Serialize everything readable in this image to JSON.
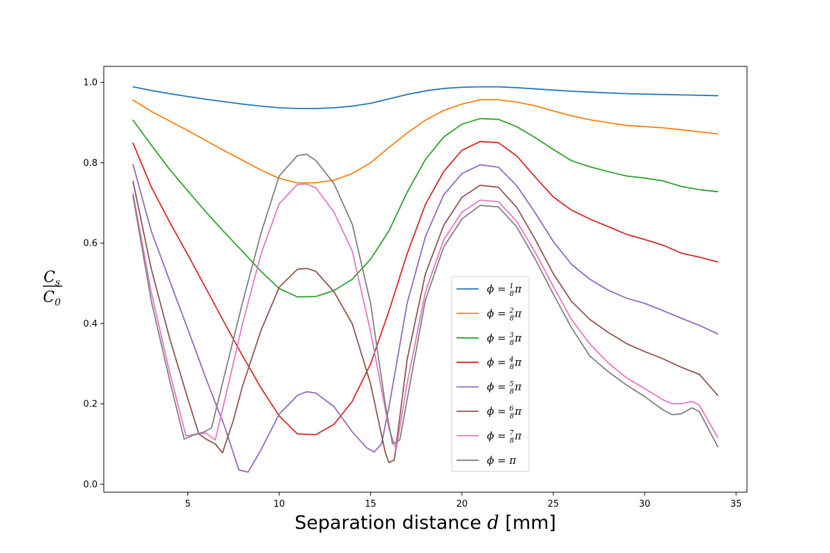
{
  "chart_data": {
    "type": "line",
    "title": "",
    "xlabel": "Separation distance d [mm]",
    "ylabel": "C_s / C_0",
    "xlim": [
      0.4,
      35.6
    ],
    "ylim": [
      -0.02,
      1.04
    ],
    "xticks": [
      5,
      10,
      15,
      20,
      25,
      30,
      35
    ],
    "yticks": [
      0.0,
      0.2,
      0.4,
      0.6,
      0.8,
      1.0
    ],
    "xtick_labels": [
      "5",
      "10",
      "15",
      "20",
      "25",
      "30",
      "35"
    ],
    "ytick_labels": [
      "0.0",
      "0.2",
      "0.4",
      "0.6",
      "0.8",
      "1.0"
    ],
    "grid": false,
    "legend_position": "lower-center",
    "series": [
      {
        "name": "ϕ = 1/8 π",
        "color": "#1f77b4",
        "points": [
          [
            2,
            0.989
          ],
          [
            3,
            0.98
          ],
          [
            4,
            0.972
          ],
          [
            5,
            0.965
          ],
          [
            6,
            0.958
          ],
          [
            7,
            0.952
          ],
          [
            8,
            0.946
          ],
          [
            9,
            0.941
          ],
          [
            10,
            0.937
          ],
          [
            11,
            0.935
          ],
          [
            12,
            0.935
          ],
          [
            13,
            0.937
          ],
          [
            14,
            0.941
          ],
          [
            15,
            0.948
          ],
          [
            16,
            0.959
          ],
          [
            17,
            0.97
          ],
          [
            18,
            0.979
          ],
          [
            19,
            0.985
          ],
          [
            20,
            0.988
          ],
          [
            21,
            0.989
          ],
          [
            22,
            0.989
          ],
          [
            23,
            0.987
          ],
          [
            24,
            0.984
          ],
          [
            25,
            0.981
          ],
          [
            26,
            0.978
          ],
          [
            27,
            0.976
          ],
          [
            28,
            0.974
          ],
          [
            29,
            0.972
          ],
          [
            30,
            0.971
          ],
          [
            31,
            0.97
          ],
          [
            32,
            0.969
          ],
          [
            33,
            0.968
          ],
          [
            34,
            0.967
          ]
        ]
      },
      {
        "name": "ϕ = 2/8 π",
        "color": "#ff7f0e",
        "points": [
          [
            2,
            0.956
          ],
          [
            3,
            0.928
          ],
          [
            4,
            0.904
          ],
          [
            5,
            0.88
          ],
          [
            6,
            0.855
          ],
          [
            7,
            0.83
          ],
          [
            8,
            0.806
          ],
          [
            9,
            0.782
          ],
          [
            10,
            0.761
          ],
          [
            11,
            0.75
          ],
          [
            12,
            0.75
          ],
          [
            13,
            0.757
          ],
          [
            14,
            0.773
          ],
          [
            15,
            0.8
          ],
          [
            16,
            0.838
          ],
          [
            17,
            0.874
          ],
          [
            18,
            0.906
          ],
          [
            19,
            0.93
          ],
          [
            20,
            0.946
          ],
          [
            21,
            0.957
          ],
          [
            22,
            0.957
          ],
          [
            23,
            0.951
          ],
          [
            24,
            0.942
          ],
          [
            25,
            0.929
          ],
          [
            26,
            0.917
          ],
          [
            27,
            0.907
          ],
          [
            28,
            0.9
          ],
          [
            29,
            0.893
          ],
          [
            30,
            0.89
          ],
          [
            31,
            0.887
          ],
          [
            32,
            0.882
          ],
          [
            33,
            0.877
          ],
          [
            34,
            0.872
          ]
        ]
      },
      {
        "name": "ϕ = 3/8 π",
        "color": "#2ca02c",
        "points": [
          [
            2,
            0.906
          ],
          [
            3,
            0.844
          ],
          [
            4,
            0.784
          ],
          [
            5,
            0.73
          ],
          [
            6,
            0.677
          ],
          [
            7,
            0.627
          ],
          [
            8,
            0.579
          ],
          [
            9,
            0.53
          ],
          [
            10,
            0.487
          ],
          [
            11,
            0.466
          ],
          [
            12,
            0.467
          ],
          [
            13,
            0.482
          ],
          [
            14,
            0.51
          ],
          [
            15,
            0.56
          ],
          [
            16,
            0.63
          ],
          [
            17,
            0.726
          ],
          [
            18,
            0.808
          ],
          [
            19,
            0.864
          ],
          [
            20,
            0.896
          ],
          [
            21,
            0.91
          ],
          [
            22,
            0.908
          ],
          [
            23,
            0.89
          ],
          [
            24,
            0.863
          ],
          [
            25,
            0.833
          ],
          [
            26,
            0.805
          ],
          [
            27,
            0.79
          ],
          [
            28,
            0.778
          ],
          [
            29,
            0.767
          ],
          [
            30,
            0.762
          ],
          [
            31,
            0.755
          ],
          [
            32,
            0.741
          ],
          [
            33,
            0.733
          ],
          [
            34,
            0.728
          ]
        ]
      },
      {
        "name": "ϕ = 4/8 π",
        "color": "#d62728",
        "points": [
          [
            2,
            0.849
          ],
          [
            3,
            0.74
          ],
          [
            4,
            0.653
          ],
          [
            5,
            0.571
          ],
          [
            6,
            0.487
          ],
          [
            7,
            0.402
          ],
          [
            8,
            0.319
          ],
          [
            9,
            0.24
          ],
          [
            10,
            0.17
          ],
          [
            11,
            0.125
          ],
          [
            12,
            0.123
          ],
          [
            13,
            0.149
          ],
          [
            14,
            0.206
          ],
          [
            15,
            0.299
          ],
          [
            16,
            0.43
          ],
          [
            17,
            0.573
          ],
          [
            18,
            0.696
          ],
          [
            19,
            0.778
          ],
          [
            20,
            0.831
          ],
          [
            21,
            0.853
          ],
          [
            22,
            0.85
          ],
          [
            23,
            0.817
          ],
          [
            24,
            0.765
          ],
          [
            25,
            0.715
          ],
          [
            26,
            0.682
          ],
          [
            27,
            0.66
          ],
          [
            28,
            0.641
          ],
          [
            29,
            0.622
          ],
          [
            30,
            0.609
          ],
          [
            31,
            0.595
          ],
          [
            32,
            0.575
          ],
          [
            33,
            0.565
          ],
          [
            34,
            0.553
          ]
        ]
      },
      {
        "name": "ϕ = 5/8 π",
        "color": "#9467bd",
        "points": [
          [
            2,
            0.796
          ],
          [
            3,
            0.63
          ],
          [
            4,
            0.507
          ],
          [
            5,
            0.386
          ],
          [
            6,
            0.262
          ],
          [
            7,
            0.145
          ],
          [
            7.8,
            0.035
          ],
          [
            8.3,
            0.03
          ],
          [
            9,
            0.085
          ],
          [
            10,
            0.174
          ],
          [
            11,
            0.221
          ],
          [
            11.5,
            0.23
          ],
          [
            12,
            0.227
          ],
          [
            13,
            0.193
          ],
          [
            14,
            0.13
          ],
          [
            14.8,
            0.09
          ],
          [
            15.2,
            0.08
          ],
          [
            15.6,
            0.1
          ],
          [
            16,
            0.19
          ],
          [
            17,
            0.45
          ],
          [
            18,
            0.616
          ],
          [
            19,
            0.72
          ],
          [
            20,
            0.773
          ],
          [
            21,
            0.795
          ],
          [
            22,
            0.789
          ],
          [
            23,
            0.743
          ],
          [
            24,
            0.676
          ],
          [
            25,
            0.604
          ],
          [
            26,
            0.547
          ],
          [
            27,
            0.51
          ],
          [
            28,
            0.483
          ],
          [
            29,
            0.463
          ],
          [
            30,
            0.45
          ],
          [
            31,
            0.432
          ],
          [
            32,
            0.413
          ],
          [
            33,
            0.395
          ],
          [
            34,
            0.374
          ]
        ]
      },
      {
        "name": "ϕ = 6/8 π",
        "color": "#8c564b",
        "points": [
          [
            2,
            0.754
          ],
          [
            3,
            0.536
          ],
          [
            4,
            0.364
          ],
          [
            5,
            0.213
          ],
          [
            5.6,
            0.125
          ],
          [
            6,
            0.112
          ],
          [
            6.5,
            0.1
          ],
          [
            6.9,
            0.078
          ],
          [
            7.5,
            0.16
          ],
          [
            8,
            0.245
          ],
          [
            9,
            0.382
          ],
          [
            10,
            0.49
          ],
          [
            11,
            0.535
          ],
          [
            11.5,
            0.537
          ],
          [
            12,
            0.53
          ],
          [
            13,
            0.479
          ],
          [
            14,
            0.399
          ],
          [
            15,
            0.25
          ],
          [
            15.8,
            0.08
          ],
          [
            16.0,
            0.054
          ],
          [
            16.3,
            0.06
          ],
          [
            17,
            0.31
          ],
          [
            18,
            0.523
          ],
          [
            19,
            0.644
          ],
          [
            20,
            0.714
          ],
          [
            21,
            0.744
          ],
          [
            22,
            0.739
          ],
          [
            23,
            0.689
          ],
          [
            24,
            0.61
          ],
          [
            25,
            0.524
          ],
          [
            26,
            0.455
          ],
          [
            27,
            0.41
          ],
          [
            28,
            0.378
          ],
          [
            29,
            0.35
          ],
          [
            30,
            0.33
          ],
          [
            31,
            0.312
          ],
          [
            32,
            0.291
          ],
          [
            33,
            0.273
          ],
          [
            34,
            0.221
          ]
        ]
      },
      {
        "name": "ϕ = 7/8 π",
        "color": "#e377c2",
        "points": [
          [
            2,
            0.724
          ],
          [
            3,
            0.478
          ],
          [
            4,
            0.28
          ],
          [
            4.9,
            0.12
          ],
          [
            5.5,
            0.125
          ],
          [
            6,
            0.127
          ],
          [
            6.5,
            0.11
          ],
          [
            7,
            0.205
          ],
          [
            8,
            0.4
          ],
          [
            9,
            0.572
          ],
          [
            10,
            0.698
          ],
          [
            11,
            0.746
          ],
          [
            11.5,
            0.747
          ],
          [
            12,
            0.738
          ],
          [
            13,
            0.677
          ],
          [
            14,
            0.58
          ],
          [
            15,
            0.38
          ],
          [
            16,
            0.14
          ],
          [
            16.4,
            0.086
          ],
          [
            17,
            0.25
          ],
          [
            18,
            0.478
          ],
          [
            19,
            0.608
          ],
          [
            20,
            0.677
          ],
          [
            21,
            0.707
          ],
          [
            22,
            0.703
          ],
          [
            23,
            0.654
          ],
          [
            24,
            0.578
          ],
          [
            25,
            0.492
          ],
          [
            26,
            0.41
          ],
          [
            27,
            0.349
          ],
          [
            28,
            0.302
          ],
          [
            29,
            0.265
          ],
          [
            30,
            0.238
          ],
          [
            31,
            0.21
          ],
          [
            31.5,
            0.2
          ],
          [
            32,
            0.2
          ],
          [
            32.6,
            0.206
          ],
          [
            33,
            0.196
          ],
          [
            34,
            0.116
          ]
        ]
      },
      {
        "name": "ϕ = π",
        "color": "#7f7f7f",
        "points": [
          [
            2,
            0.717
          ],
          [
            3,
            0.456
          ],
          [
            4,
            0.26
          ],
          [
            4.8,
            0.112
          ],
          [
            5.3,
            0.122
          ],
          [
            5.9,
            0.13
          ],
          [
            6.3,
            0.14
          ],
          [
            7,
            0.27
          ],
          [
            8,
            0.453
          ],
          [
            9,
            0.624
          ],
          [
            10,
            0.767
          ],
          [
            11,
            0.818
          ],
          [
            11.5,
            0.821
          ],
          [
            12,
            0.806
          ],
          [
            13,
            0.748
          ],
          [
            14,
            0.647
          ],
          [
            15,
            0.45
          ],
          [
            15.8,
            0.2
          ],
          [
            16.2,
            0.1
          ],
          [
            16.6,
            0.11
          ],
          [
            17,
            0.21
          ],
          [
            18,
            0.458
          ],
          [
            19,
            0.59
          ],
          [
            20,
            0.66
          ],
          [
            21,
            0.694
          ],
          [
            22,
            0.69
          ],
          [
            23,
            0.64
          ],
          [
            24,
            0.561
          ],
          [
            25,
            0.473
          ],
          [
            26,
            0.389
          ],
          [
            27,
            0.319
          ],
          [
            28,
            0.28
          ],
          [
            29,
            0.247
          ],
          [
            30,
            0.218
          ],
          [
            31,
            0.185
          ],
          [
            31.5,
            0.173
          ],
          [
            32,
            0.175
          ],
          [
            32.6,
            0.19
          ],
          [
            33,
            0.18
          ],
          [
            34,
            0.093
          ]
        ]
      }
    ]
  },
  "legend": {
    "items": [
      {
        "prefix": "ϕ = ",
        "num": "1",
        "den": "8",
        "suffix": "π"
      },
      {
        "prefix": "ϕ = ",
        "num": "2",
        "den": "8",
        "suffix": "π"
      },
      {
        "prefix": "ϕ = ",
        "num": "3",
        "den": "8",
        "suffix": "π"
      },
      {
        "prefix": "ϕ = ",
        "num": "4",
        "den": "8",
        "suffix": "π"
      },
      {
        "prefix": "ϕ = ",
        "num": "5",
        "den": "8",
        "suffix": "π"
      },
      {
        "prefix": "ϕ = ",
        "num": "6",
        "den": "8",
        "suffix": "π"
      },
      {
        "prefix": "ϕ = ",
        "num": "7",
        "den": "8",
        "suffix": "π"
      },
      {
        "prefix": "ϕ = ",
        "num": "",
        "den": "",
        "suffix": "π"
      }
    ]
  },
  "axes": {
    "xlabel_main": "Separation distance ",
    "xlabel_var": "d",
    "xlabel_unit": " [mm]",
    "ylabel_num": "C",
    "ylabel_num_sub": "s",
    "ylabel_den": "C",
    "ylabel_den_sub": "0"
  }
}
